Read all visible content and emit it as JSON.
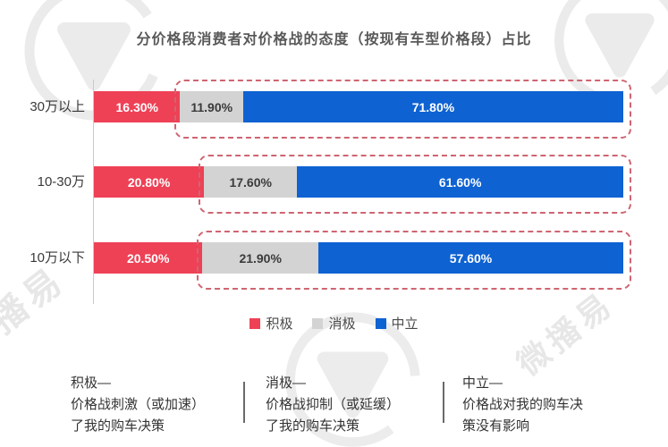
{
  "title": "分价格段消费者对价格战的态度（按现有车型价格段）占比",
  "watermark_brand": "微播易",
  "chart_data": {
    "type": "bar",
    "orientation": "horizontal",
    "stacked": true,
    "unit": "percent",
    "xlim": [
      0,
      100
    ],
    "grid": false,
    "legend_position": "bottom",
    "categories": [
      "30万以上",
      "10-30万",
      "10万以下"
    ],
    "series": [
      {
        "name": "积极",
        "color": "#ee4156",
        "values": [
          16.3,
          20.8,
          20.5
        ]
      },
      {
        "name": "消极",
        "color": "#d3d3d3",
        "values": [
          11.9,
          17.6,
          21.9
        ]
      },
      {
        "name": "中立",
        "color": "#0e62d2",
        "values": [
          71.8,
          61.6,
          57.6
        ]
      }
    ],
    "value_labels": [
      [
        "16.30%",
        "11.90%",
        "71.80%"
      ],
      [
        "20.80%",
        "17.60%",
        "61.60%"
      ],
      [
        "20.50%",
        "21.90%",
        "57.60%"
      ]
    ],
    "annotation": "dashed rounded box highlights 消极+中立 segments of each bar",
    "highlight_box_color": "#cf6571"
  },
  "legend": {
    "items": [
      {
        "label": "积极",
        "color": "#ee4156"
      },
      {
        "label": "消极",
        "color": "#d3d3d3"
      },
      {
        "label": "中立",
        "color": "#0e62d2"
      }
    ]
  },
  "footnotes": [
    {
      "text": "积极—\n价格战刺激（或加速）\n了我的购车决策"
    },
    {
      "text": "消极—\n价格战抑制（或延缓）\n了我的购车决策"
    },
    {
      "text": "中立—\n价格战对我的购车决\n策没有影响"
    }
  ],
  "colors": {
    "positive": "#ee4156",
    "negative": "#d3d3d3",
    "neutral": "#0e62d2",
    "dash_border": "#cf6571",
    "axis": "#c9c9c9",
    "title_text": "#595959",
    "body_text": "#333333"
  }
}
